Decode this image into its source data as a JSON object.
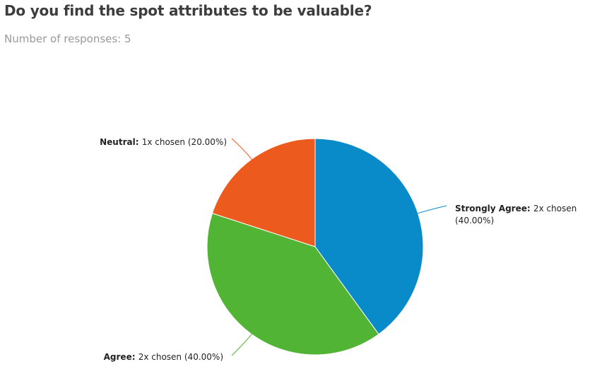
{
  "header": {
    "title": "Do you find the spot attributes to be valuable?",
    "subtitle": "Number of responses: 5"
  },
  "chart_data": {
    "type": "pie",
    "title": "Do you find the spot attributes to be valuable?",
    "subtitle": "Number of responses: 5",
    "slices": [
      {
        "label": "Strongly Agree",
        "count_text": "2x chosen",
        "percent_text": "(40.00%)",
        "value": 40.0,
        "count": 2,
        "color": "#0a8bc9"
      },
      {
        "label": "Agree",
        "count_text": "2x chosen",
        "percent_text": "(40.00%)",
        "value": 40.0,
        "count": 2,
        "color": "#52b434"
      },
      {
        "label": "Neutral",
        "count_text": "1x chosen",
        "percent_text": "(20.00%)",
        "value": 20.0,
        "count": 1,
        "color": "#ec5a1e"
      }
    ]
  }
}
